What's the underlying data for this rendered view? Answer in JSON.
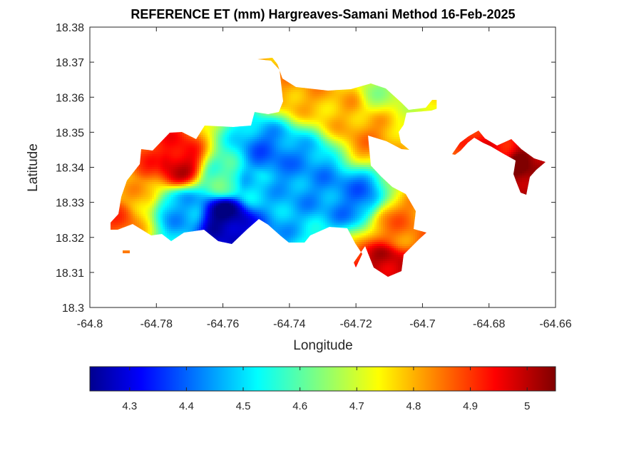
{
  "chart_data": {
    "type": "heatmap",
    "title": "REFERENCE ET (mm) Hargreaves-Samani Method  16-Feb-2025",
    "xlabel": "Longitude",
    "ylabel": "Latitude",
    "xlim": [
      -64.8,
      -64.66
    ],
    "ylim": [
      18.3,
      18.38
    ],
    "xticks": [
      "-64.8",
      "-64.78",
      "-64.76",
      "-64.74",
      "-64.72",
      "-64.7",
      "-64.68",
      "-64.66"
    ],
    "yticks": [
      "18.38",
      "18.37",
      "18.36",
      "18.35",
      "18.34",
      "18.33",
      "18.32",
      "18.31",
      "18.3"
    ],
    "grid": false,
    "colormap": "jet",
    "colorbar": {
      "placement": "bottom",
      "clim": [
        4.23,
        5.05
      ],
      "ticks": [
        "4.3",
        "4.4",
        "4.5",
        "4.6",
        "4.7",
        "4.8",
        "4.9",
        "5"
      ]
    },
    "hotspots": [
      {
        "lon": -64.7592,
        "lat": 18.3266,
        "value": 4.24
      },
      {
        "lon": -64.7462,
        "lat": 18.3429,
        "value": 4.42
      },
      {
        "lon": -64.7349,
        "lat": 18.3389,
        "value": 4.45
      },
      {
        "lon": -64.7204,
        "lat": 18.3316,
        "value": 4.43
      },
      {
        "lon": -64.7731,
        "lat": 18.3282,
        "value": 4.47
      },
      {
        "lon": -64.7502,
        "lat": 18.3347,
        "value": 4.5
      },
      {
        "lon": -64.7738,
        "lat": 18.3404,
        "value": 4.98
      },
      {
        "lon": -64.7834,
        "lat": 18.3421,
        "value": 4.9
      },
      {
        "lon": -64.7252,
        "lat": 18.3588,
        "value": 4.8
      },
      {
        "lon": -64.7375,
        "lat": 18.3636,
        "value": 4.82
      },
      {
        "lon": -64.7157,
        "lat": 18.3489,
        "value": 4.83
      },
      {
        "lon": -64.7108,
        "lat": 18.3112,
        "value": 5.0
      },
      {
        "lon": -64.7075,
        "lat": 18.3228,
        "value": 4.85
      },
      {
        "lon": -64.7926,
        "lat": 18.3262,
        "value": 4.88
      },
      {
        "lon": -64.7868,
        "lat": 18.3327,
        "value": 4.8
      },
      {
        "lon": -64.6707,
        "lat": 18.3404,
        "value": 5.04
      },
      {
        "lon": -64.6771,
        "lat": 18.3441,
        "value": 4.95
      },
      {
        "lon": -64.7123,
        "lat": 18.3624,
        "value": 4.68
      },
      {
        "lon": -64.7013,
        "lat": 18.3588,
        "value": 4.72
      },
      {
        "lon": -64.7592,
        "lat": 18.3356,
        "value": 4.6
      }
    ]
  }
}
